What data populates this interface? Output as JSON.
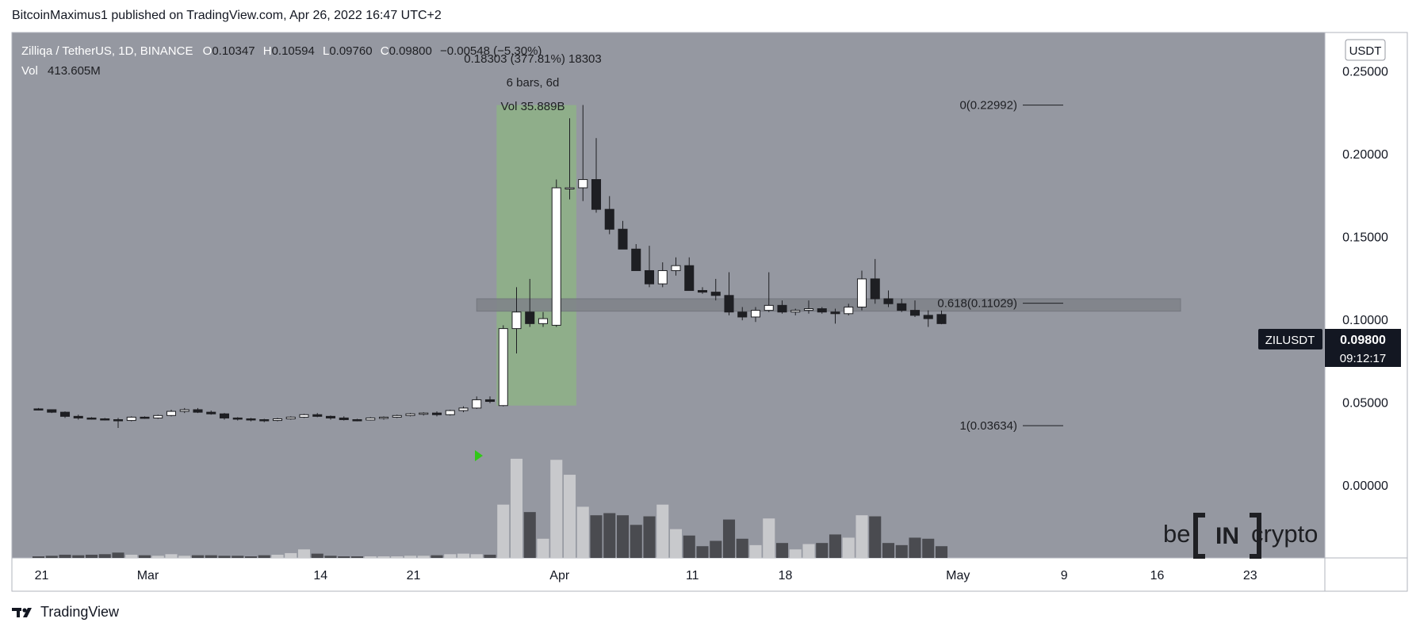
{
  "header": {
    "published": "BitcoinMaximus1 published on TradingView.com, Apr 26, 2022 16:47 UTC+2"
  },
  "footer": {
    "brand": "TradingView"
  },
  "legend": {
    "symbol": "Zilliqa / TetherUS, 1D, BINANCE",
    "o_label": "O",
    "o_value": "0.10347",
    "h_label": "H",
    "h_value": "0.10594",
    "l_label": "L",
    "l_value": "0.09760",
    "c_label": "C",
    "c_value": "0.09800",
    "change": "−0.00548 (−5.30%)",
    "vol_label": "Vol",
    "vol_value": "413.605M"
  },
  "measure": {
    "line1": "0.18303 (377.81%) 18303",
    "line2": "6 bars, 6d",
    "line3": "Vol 35.889B"
  },
  "price_scale": {
    "currency": "USDT"
  },
  "last_price": {
    "ticker": "ZILUSDT",
    "price": "0.09800",
    "countdown": "09:12:17"
  },
  "watermark": {
    "left": "be",
    "middle": "IN",
    "right": "crypto"
  },
  "colors": {
    "background": "#9598a1",
    "axis_bg": "#ffffff",
    "up": "#ffffff",
    "down": "#1e1f23",
    "vol_up": "#c8c9cc",
    "vol_down": "#4a4b50",
    "zone": "#8fae8a",
    "resistance": "#7f8289",
    "marker": "#31c818"
  },
  "chart_data": {
    "type": "candlestick",
    "title": "Zilliqa / TetherUS, 1D, BINANCE",
    "ylabel": "USDT",
    "ylim": [
      -0.0435,
      0.2738
    ],
    "y_ticks": [
      0.25,
      0.2,
      0.15,
      0.1,
      0.05,
      0.0
    ],
    "y_tick_labels": [
      "0.25000",
      "0.20000",
      "0.15000",
      "0.10000",
      "0.05000",
      "0.00000"
    ],
    "x_ticks": [
      {
        "label": "21",
        "day": 0
      },
      {
        "label": "Mar",
        "day": 8
      },
      {
        "label": "14",
        "day": 21
      },
      {
        "label": "21",
        "day": 28
      },
      {
        "label": "Apr",
        "day": 39
      },
      {
        "label": "11",
        "day": 49
      },
      {
        "label": "18",
        "day": 56
      },
      {
        "label": "May",
        "day": 69
      },
      {
        "label": "9",
        "day": 77
      },
      {
        "label": "16",
        "day": 84
      },
      {
        "label": "23",
        "day": 91
      }
    ],
    "candles_start_label": "Feb 21 (day 0)",
    "candles": [
      [
        0.0465,
        0.047,
        0.0455,
        0.046,
        1.5
      ],
      [
        0.046,
        0.0462,
        0.044,
        0.0445,
        2.0
      ],
      [
        0.0445,
        0.045,
        0.041,
        0.042,
        3.0
      ],
      [
        0.042,
        0.043,
        0.04,
        0.041,
        2.5
      ],
      [
        0.041,
        0.0415,
        0.04,
        0.0405,
        3.0
      ],
      [
        0.0405,
        0.041,
        0.0395,
        0.04,
        3.5
      ],
      [
        0.04,
        0.041,
        0.035,
        0.0395,
        5.0
      ],
      [
        0.0395,
        0.042,
        0.039,
        0.0415,
        3.0
      ],
      [
        0.0415,
        0.042,
        0.0405,
        0.041,
        2.5
      ],
      [
        0.041,
        0.043,
        0.0405,
        0.0425,
        2.0
      ],
      [
        0.0425,
        0.046,
        0.042,
        0.045,
        3.5
      ],
      [
        0.045,
        0.047,
        0.044,
        0.046,
        2.0
      ],
      [
        0.046,
        0.047,
        0.044,
        0.0445,
        2.5
      ],
      [
        0.0445,
        0.0455,
        0.043,
        0.0435,
        2.5
      ],
      [
        0.0435,
        0.044,
        0.04,
        0.041,
        2.0
      ],
      [
        0.041,
        0.0415,
        0.0395,
        0.0405,
        2.0
      ],
      [
        0.0405,
        0.041,
        0.039,
        0.04,
        1.5
      ],
      [
        0.04,
        0.0405,
        0.0385,
        0.0395,
        2.5
      ],
      [
        0.0395,
        0.041,
        0.039,
        0.0405,
        3.0
      ],
      [
        0.0405,
        0.042,
        0.04,
        0.0415,
        4.5
      ],
      [
        0.0415,
        0.0435,
        0.041,
        0.043,
        8.0
      ],
      [
        0.043,
        0.044,
        0.0415,
        0.042,
        4.0
      ],
      [
        0.042,
        0.0425,
        0.04,
        0.041,
        2.0
      ],
      [
        0.041,
        0.042,
        0.0395,
        0.04,
        1.5
      ],
      [
        0.04,
        0.0405,
        0.039,
        0.0398,
        1.5
      ],
      [
        0.0398,
        0.0415,
        0.0395,
        0.041,
        1.5
      ],
      [
        0.041,
        0.042,
        0.04,
        0.0415,
        1.5
      ],
      [
        0.0415,
        0.043,
        0.041,
        0.0425,
        1.5
      ],
      [
        0.0425,
        0.044,
        0.042,
        0.0435,
        2.0
      ],
      [
        0.0435,
        0.0445,
        0.0425,
        0.044,
        2.0
      ],
      [
        0.044,
        0.045,
        0.042,
        0.043,
        2.5
      ],
      [
        0.043,
        0.046,
        0.0425,
        0.0455,
        3.5
      ],
      [
        0.0455,
        0.048,
        0.0445,
        0.047,
        4.0
      ],
      [
        0.047,
        0.054,
        0.0465,
        0.052,
        3.5
      ],
      [
        0.052,
        0.054,
        0.05,
        0.051,
        3.0
      ],
      [
        0.0485,
        0.097,
        0.048,
        0.095,
        50
      ],
      [
        0.095,
        0.12,
        0.08,
        0.105,
        93
      ],
      [
        0.105,
        0.125,
        0.096,
        0.098,
        43
      ],
      [
        0.098,
        0.105,
        0.096,
        0.101,
        18
      ],
      [
        0.097,
        0.185,
        0.096,
        0.18,
        92
      ],
      [
        0.18,
        0.222,
        0.173,
        0.18,
        78
      ],
      [
        0.18,
        0.23,
        0.172,
        0.185,
        48
      ],
      [
        0.185,
        0.21,
        0.165,
        0.167,
        40
      ],
      [
        0.167,
        0.175,
        0.152,
        0.155,
        42
      ],
      [
        0.155,
        0.16,
        0.143,
        0.143,
        40
      ],
      [
        0.143,
        0.146,
        0.13,
        0.13,
        31
      ],
      [
        0.13,
        0.145,
        0.12,
        0.122,
        39
      ],
      [
        0.122,
        0.135,
        0.12,
        0.13,
        50
      ],
      [
        0.13,
        0.138,
        0.127,
        0.133,
        27
      ],
      [
        0.133,
        0.138,
        0.118,
        0.118,
        21
      ],
      [
        0.118,
        0.12,
        0.116,
        0.117,
        11
      ],
      [
        0.117,
        0.125,
        0.112,
        0.115,
        16
      ],
      [
        0.115,
        0.129,
        0.103,
        0.105,
        36
      ],
      [
        0.105,
        0.108,
        0.1,
        0.102,
        18
      ],
      [
        0.102,
        0.108,
        0.099,
        0.106,
        12
      ],
      [
        0.106,
        0.129,
        0.105,
        0.109,
        37
      ],
      [
        0.109,
        0.112,
        0.104,
        0.105,
        14
      ],
      [
        0.105,
        0.107,
        0.103,
        0.106,
        8
      ],
      [
        0.106,
        0.112,
        0.104,
        0.107,
        13
      ],
      [
        0.107,
        0.108,
        0.104,
        0.105,
        14
      ],
      [
        0.105,
        0.107,
        0.098,
        0.104,
        22
      ],
      [
        0.104,
        0.11,
        0.103,
        0.108,
        19
      ],
      [
        0.108,
        0.13,
        0.106,
        0.125,
        40
      ],
      [
        0.125,
        0.137,
        0.11,
        0.113,
        39
      ],
      [
        0.113,
        0.118,
        0.108,
        0.11,
        14
      ],
      [
        0.11,
        0.113,
        0.105,
        0.106,
        12
      ],
      [
        0.106,
        0.112,
        0.102,
        0.103,
        19
      ],
      [
        0.103,
        0.106,
        0.096,
        0.101,
        18
      ],
      [
        0.1035,
        0.1059,
        0.0976,
        0.098,
        11
      ]
    ],
    "volume_ylim": [
      0,
      110
    ],
    "fib_levels": [
      {
        "ratio": "0",
        "price": 0.22992,
        "label": "0(0.22992)"
      },
      {
        "ratio": "0.618",
        "price": 0.11029,
        "label": "0.618(0.11029)"
      },
      {
        "ratio": "1",
        "price": 0.03634,
        "label": "1(0.03634)"
      }
    ],
    "highlight_zone": {
      "from_day": 35,
      "to_day": 41,
      "low": 0.0485,
      "high": 0.23
    },
    "resistance_band": {
      "from_day": 33,
      "to_day": 86,
      "low": 0.1055,
      "high": 0.113
    },
    "last_price": 0.098
  }
}
